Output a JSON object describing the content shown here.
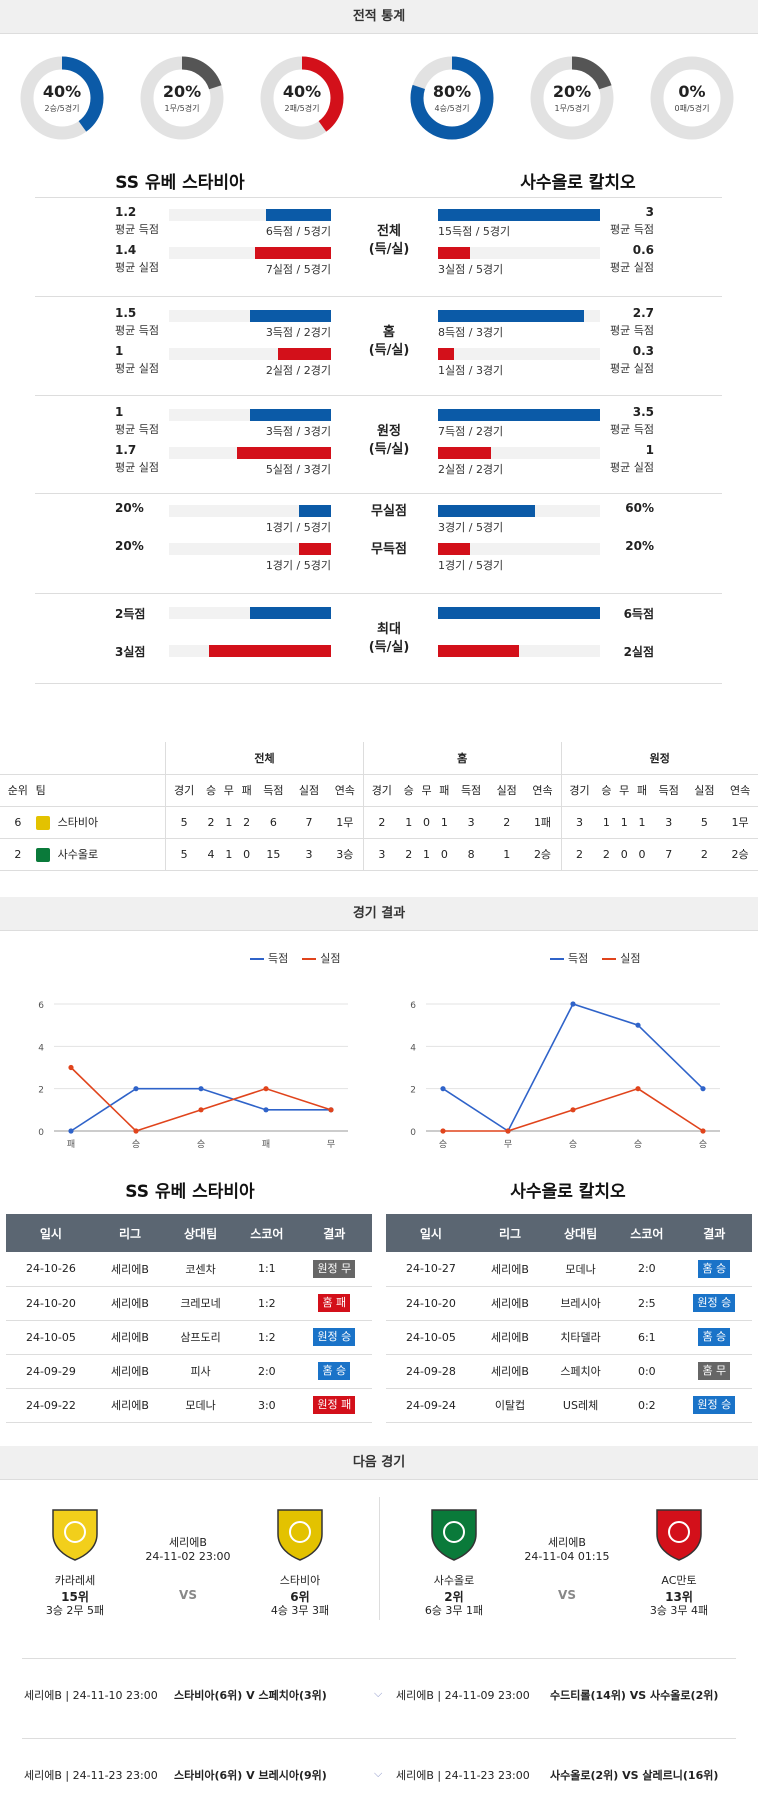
{
  "sections": {
    "stats": "전적 통계",
    "results": "경기 결과",
    "next": "다음 경기"
  },
  "home": {
    "name": "SS 유베 스타비아",
    "donuts": [
      {
        "pct": "40%",
        "sub": "2승/5경기",
        "value": 0.4,
        "color": "#0b5aa7"
      },
      {
        "pct": "20%",
        "sub": "1무/5경기",
        "value": 0.2,
        "color": "#555555"
      },
      {
        "pct": "40%",
        "sub": "2패/5경기",
        "value": 0.4,
        "color": "#d3101a"
      }
    ]
  },
  "away": {
    "name": "사수올로 칼치오",
    "donuts": [
      {
        "pct": "80%",
        "sub": "4승/5경기",
        "value": 0.8,
        "color": "#0b5aa7"
      },
      {
        "pct": "20%",
        "sub": "1무/5경기",
        "value": 0.2,
        "color": "#555555"
      },
      {
        "pct": "0%",
        "sub": "0패/5경기",
        "value": 0,
        "color": "#d3101a"
      }
    ]
  },
  "stat_groups": [
    {
      "center": [
        "전체",
        "(득/실)"
      ],
      "lines": [
        {
          "home_val": "1.2",
          "home_label": "평균 득점",
          "home_cap": "6득점 / 5경기",
          "home_frac": 0.4,
          "home_color": "blue",
          "away_val": "3",
          "away_label": "평균 득점",
          "away_cap": "15득점 / 5경기",
          "away_frac": 1.0,
          "away_color": "blue"
        },
        {
          "home_val": "1.4",
          "home_label": "평균 실점",
          "home_cap": "7실점 / 5경기",
          "home_frac": 0.47,
          "home_color": "red",
          "away_val": "0.6",
          "away_label": "평균 실점",
          "away_cap": "3실점 / 5경기",
          "away_frac": 0.2,
          "away_color": "red"
        }
      ]
    },
    {
      "center": [
        "홈",
        "(득/실)"
      ],
      "lines": [
        {
          "home_val": "1.5",
          "home_label": "평균 득점",
          "home_cap": "3득점 / 2경기",
          "home_frac": 0.5,
          "home_color": "blue",
          "away_val": "2.7",
          "away_label": "평균 득점",
          "away_cap": "8득점 / 3경기",
          "away_frac": 0.9,
          "away_color": "blue"
        },
        {
          "home_val": "1",
          "home_label": "평균 실점",
          "home_cap": "2실점 / 2경기",
          "home_frac": 0.33,
          "home_color": "red",
          "away_val": "0.3",
          "away_label": "평균 실점",
          "away_cap": "1실점 / 3경기",
          "away_frac": 0.1,
          "away_color": "red"
        }
      ]
    },
    {
      "center": [
        "원정",
        "(득/실)"
      ],
      "lines": [
        {
          "home_val": "1",
          "home_label": "평균 득점",
          "home_cap": "3득점 / 3경기",
          "home_frac": 0.5,
          "home_color": "blue",
          "away_val": "3.5",
          "away_label": "평균 득점",
          "away_cap": "7득점 / 2경기",
          "away_frac": 1.0,
          "away_color": "blue"
        },
        {
          "home_val": "1.7",
          "home_label": "평균 실점",
          "home_cap": "5실점 / 3경기",
          "home_frac": 0.58,
          "home_color": "red",
          "away_val": "1",
          "away_label": "평균 실점",
          "away_cap": "2실점 / 2경기",
          "away_frac": 0.33,
          "away_color": "red"
        }
      ]
    },
    {
      "lines": [
        {
          "center": "무실점",
          "home_val": "20%",
          "home_label": "",
          "home_cap": "1경기 / 5경기",
          "home_frac": 0.2,
          "home_color": "blue",
          "away_val": "60%",
          "away_label": "",
          "away_cap": "3경기 / 5경기",
          "away_frac": 0.6,
          "away_color": "blue"
        },
        {
          "center": "무득점",
          "home_val": "20%",
          "home_label": "",
          "home_cap": "1경기 / 5경기",
          "home_frac": 0.2,
          "home_color": "red",
          "away_val": "20%",
          "away_label": "",
          "away_cap": "1경기 / 5경기",
          "away_frac": 0.2,
          "away_color": "red"
        }
      ]
    },
    {
      "center": [
        "최대",
        "(득/실)"
      ],
      "lines": [
        {
          "home_val": "2득점",
          "home_cap": "",
          "home_frac": 0.5,
          "home_color": "blue",
          "away_val": "6득점",
          "away_cap": "",
          "away_frac": 1.0,
          "away_color": "blue"
        },
        {
          "home_val": "3실점",
          "home_cap": "",
          "home_frac": 0.75,
          "home_color": "red",
          "away_val": "2실점",
          "away_cap": "",
          "away_frac": 0.5,
          "away_color": "red"
        }
      ]
    }
  ],
  "standings": {
    "groups": [
      "전체",
      "홈",
      "원정"
    ],
    "cols": [
      "순위",
      "팀",
      "경기",
      "승",
      "무",
      "패",
      "득점",
      "실점",
      "연속",
      "경기",
      "승",
      "무",
      "패",
      "득점",
      "실점",
      "연속",
      "경기",
      "승",
      "무",
      "패",
      "득점",
      "실점",
      "연속"
    ],
    "rows": [
      {
        "rank": "6",
        "team": "스타비아",
        "crest": "#e3c200",
        "cells": [
          "5",
          "2",
          "1",
          "2",
          "6",
          "7",
          "1무",
          "2",
          "1",
          "0",
          "1",
          "3",
          "2",
          "1패",
          "3",
          "1",
          "1",
          "1",
          "3",
          "5",
          "1무"
        ]
      },
      {
        "rank": "2",
        "team": "사수올로",
        "crest": "#0a7a3a",
        "cells": [
          "5",
          "4",
          "1",
          "0",
          "15",
          "3",
          "3승",
          "3",
          "2",
          "1",
          "0",
          "8",
          "1",
          "2승",
          "2",
          "2",
          "0",
          "0",
          "7",
          "2",
          "2승"
        ]
      }
    ]
  },
  "legend": {
    "scored": "득점",
    "conceded": "실점"
  },
  "chart_data": [
    {
      "type": "line",
      "categories": [
        "패",
        "승",
        "승",
        "패",
        "무"
      ],
      "series": [
        {
          "name": "득점",
          "values": [
            0,
            2,
            2,
            1,
            1
          ],
          "color": "#2f63c9"
        },
        {
          "name": "실점",
          "values": [
            3,
            0,
            1,
            2,
            1
          ],
          "color": "#e0441c"
        }
      ],
      "yticks": [
        0,
        2,
        4,
        6
      ],
      "ylim": [
        0,
        6
      ]
    },
    {
      "type": "line",
      "categories": [
        "승",
        "무",
        "승",
        "승",
        "승"
      ],
      "series": [
        {
          "name": "득점",
          "values": [
            2,
            0,
            6,
            5,
            2
          ],
          "color": "#2f63c9"
        },
        {
          "name": "실점",
          "values": [
            0,
            0,
            1,
            2,
            0
          ],
          "color": "#e0441c"
        }
      ],
      "yticks": [
        0,
        2,
        4,
        6
      ],
      "ylim": [
        0,
        6
      ]
    }
  ],
  "results_headers": [
    "일시",
    "리그",
    "상대팀",
    "스코어",
    "결과"
  ],
  "home_results": [
    {
      "date": "24-10-26",
      "league": "세리에B",
      "opp": "코센차",
      "score": "1:1",
      "result": "원정 무",
      "color": "grey"
    },
    {
      "date": "24-10-20",
      "league": "세리에B",
      "opp": "크레모네",
      "score": "1:2",
      "result": "홈 패",
      "color": "red"
    },
    {
      "date": "24-10-05",
      "league": "세리에B",
      "opp": "삼프도리",
      "score": "1:2",
      "result": "원정 승",
      "color": "blue"
    },
    {
      "date": "24-09-29",
      "league": "세리에B",
      "opp": "피사",
      "score": "2:0",
      "result": "홈 승",
      "color": "blue"
    },
    {
      "date": "24-09-22",
      "league": "세리에B",
      "opp": "모데나",
      "score": "3:0",
      "result": "원정 패",
      "color": "red"
    }
  ],
  "away_results": [
    {
      "date": "24-10-27",
      "league": "세리에B",
      "opp": "모데나",
      "score": "2:0",
      "result": "홈 승",
      "color": "blue"
    },
    {
      "date": "24-10-20",
      "league": "세리에B",
      "opp": "브레시아",
      "score": "2:5",
      "result": "원정 승",
      "color": "blue"
    },
    {
      "date": "24-10-05",
      "league": "세리에B",
      "opp": "치타델라",
      "score": "6:1",
      "result": "홈 승",
      "color": "blue"
    },
    {
      "date": "24-09-28",
      "league": "세리에B",
      "opp": "스페치아",
      "score": "0:0",
      "result": "홈 무",
      "color": "grey"
    },
    {
      "date": "24-09-24",
      "league": "이탈컵",
      "opp": "US레체",
      "score": "0:2",
      "result": "원정 승",
      "color": "blue"
    }
  ],
  "next": [
    {
      "league": "세리에B",
      "datetime": "24-11-02 23:00",
      "vs": "VS",
      "left": {
        "name": "카라레세",
        "rank": "15위",
        "record": "3승 2무 5패",
        "crest_color": "#f2cf1b",
        "crest_icon": "shield-icon"
      },
      "right": {
        "name": "스타비아",
        "rank": "6위",
        "record": "4승 3무 3패",
        "crest_color": "#e3c200",
        "crest_icon": "shield-icon"
      }
    },
    {
      "league": "세리에B",
      "datetime": "24-11-04 01:15",
      "vs": "VS",
      "left": {
        "name": "사수올로",
        "rank": "2위",
        "record": "6승 3무 1패",
        "crest_color": "#0a7a3a",
        "crest_icon": "shield-icon"
      },
      "right": {
        "name": "AC만토",
        "rank": "13위",
        "record": "3승 3무 4패",
        "crest_color": "#d3101a",
        "crest_icon": "shield-icon"
      }
    }
  ],
  "fixtures": [
    {
      "left": "세리에B | 24-11-10 23:00",
      "left_match": "스타비아(6위) V  스페치아(3위)",
      "right": "세리에B | 24-11-09 23:00",
      "right_match": "수드티롤(14위) VS 사수올로(2위)"
    },
    {
      "left": "세리에B | 24-11-23 23:00",
      "left_match": "스타비아(6위) V 브레시아(9위)",
      "right": "세리에B | 24-11-23 23:00",
      "right_match": "사수올로(2위) VS 살레르니(16위)"
    }
  ]
}
